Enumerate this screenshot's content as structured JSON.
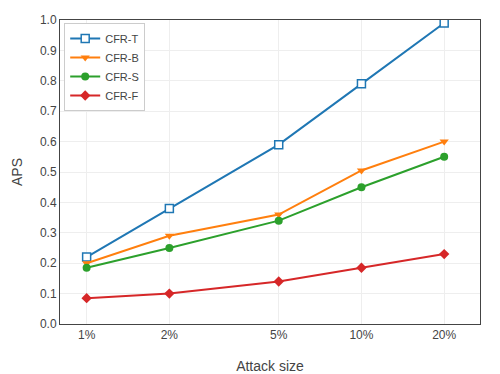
{
  "chart_data": {
    "type": "line",
    "x": [
      1,
      2,
      5,
      10,
      20
    ],
    "series": [
      {
        "name": "CFR-T",
        "color": "#1f77b4",
        "marker": "square-open",
        "values": [
          0.22,
          0.38,
          0.59,
          0.79,
          0.99
        ]
      },
      {
        "name": "CFR-B",
        "color": "#ff7f0e",
        "marker": "triangle-down",
        "values": [
          0.2,
          0.29,
          0.36,
          0.505,
          0.6
        ]
      },
      {
        "name": "CFR-S",
        "color": "#2ca02c",
        "marker": "circle",
        "values": [
          0.185,
          0.25,
          0.34,
          0.45,
          0.55
        ]
      },
      {
        "name": "CFR-F",
        "color": "#d62728",
        "marker": "diamond",
        "values": [
          0.085,
          0.1,
          0.14,
          0.185,
          0.23
        ]
      }
    ],
    "x_label": "Attack size",
    "y_label": "APS",
    "log": "x",
    "xlim": [
      0.8,
      27
    ],
    "xticks": [
      {
        "value": 1,
        "label": "1%"
      },
      {
        "value": 2,
        "label": "2%"
      },
      {
        "value": 5,
        "label": "5%"
      },
      {
        "value": 10,
        "label": "10%"
      },
      {
        "value": 20,
        "label": "20%"
      }
    ],
    "ylim": [
      0.0,
      1.0
    ],
    "yticks": [
      {
        "value": 0,
        "label": "0.0"
      },
      0.1,
      0.2,
      0.3,
      0.4,
      0.5,
      0.6,
      0.7,
      0.8,
      0.9,
      {
        "value": 1,
        "label": "1.0"
      }
    ],
    "grid": true,
    "legend": "upper left"
  }
}
